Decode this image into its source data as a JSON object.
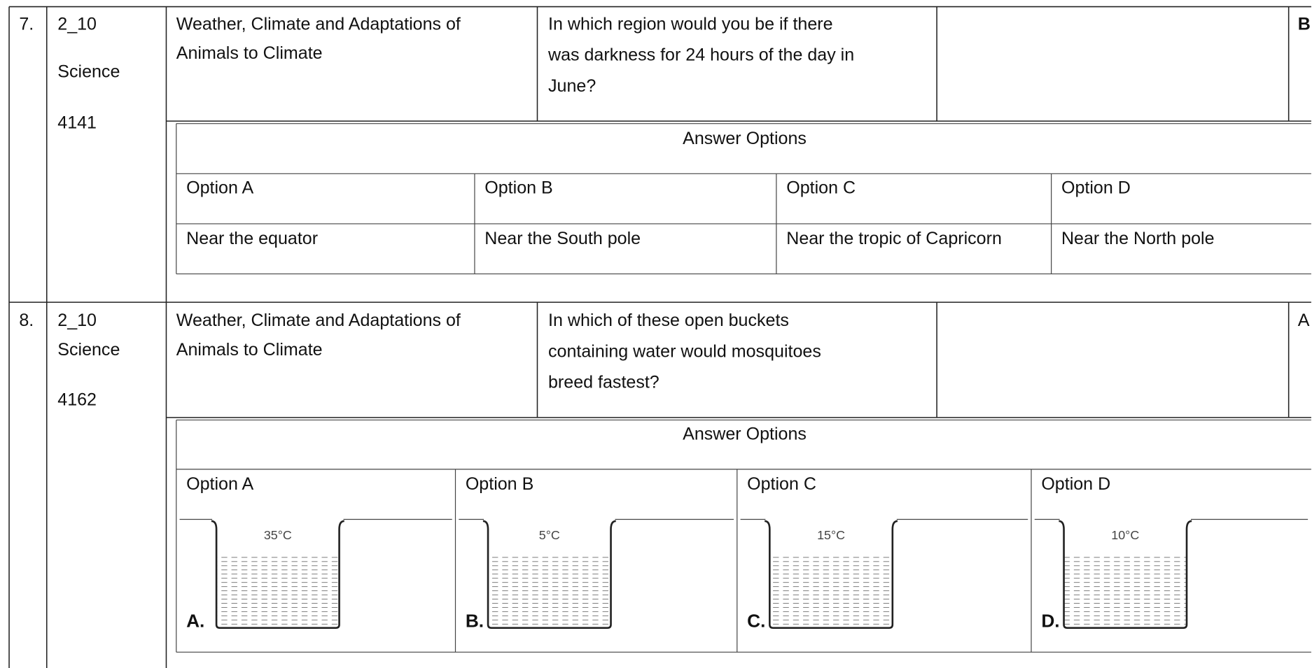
{
  "rows": [
    {
      "number": "7.",
      "code": [
        "2_10",
        "Science",
        "4141"
      ],
      "topic": [
        "Weather, Climate and Adaptations of",
        "Animals to Climate"
      ],
      "question": [
        "In which region would you be if there",
        "was darkness for 24 hours of the day in",
        "June?"
      ],
      "answer": "B",
      "options_header": "Answer Options",
      "options": [
        {
          "label": "Option  A",
          "text": "Near the equator"
        },
        {
          "label": "Option  B",
          "text": "Near the South pole"
        },
        {
          "label": "Option  C",
          "text": "Near the tropic of Capricorn"
        },
        {
          "label": "Option  D",
          "text": "Near the North pole"
        }
      ]
    },
    {
      "number": "8.",
      "code": [
        "2_10",
        "Science",
        "4162"
      ],
      "topic": [
        "Weather, Climate and Adaptations of",
        "Animals to Climate"
      ],
      "question": [
        "In which of these open buckets",
        "containing water would mosquitoes",
        "breed fastest?"
      ],
      "answer": "A",
      "options_header": "Answer Options",
      "options": [
        {
          "label": "Option  A",
          "letter": "A.",
          "temperature": "35°C"
        },
        {
          "label": "Option  B",
          "letter": "B.",
          "temperature": "5°C"
        },
        {
          "label": "Option  C",
          "letter": "C.",
          "temperature": "15°C"
        },
        {
          "label": "Option  D",
          "letter": "D.",
          "temperature": "10°C"
        }
      ]
    }
  ]
}
